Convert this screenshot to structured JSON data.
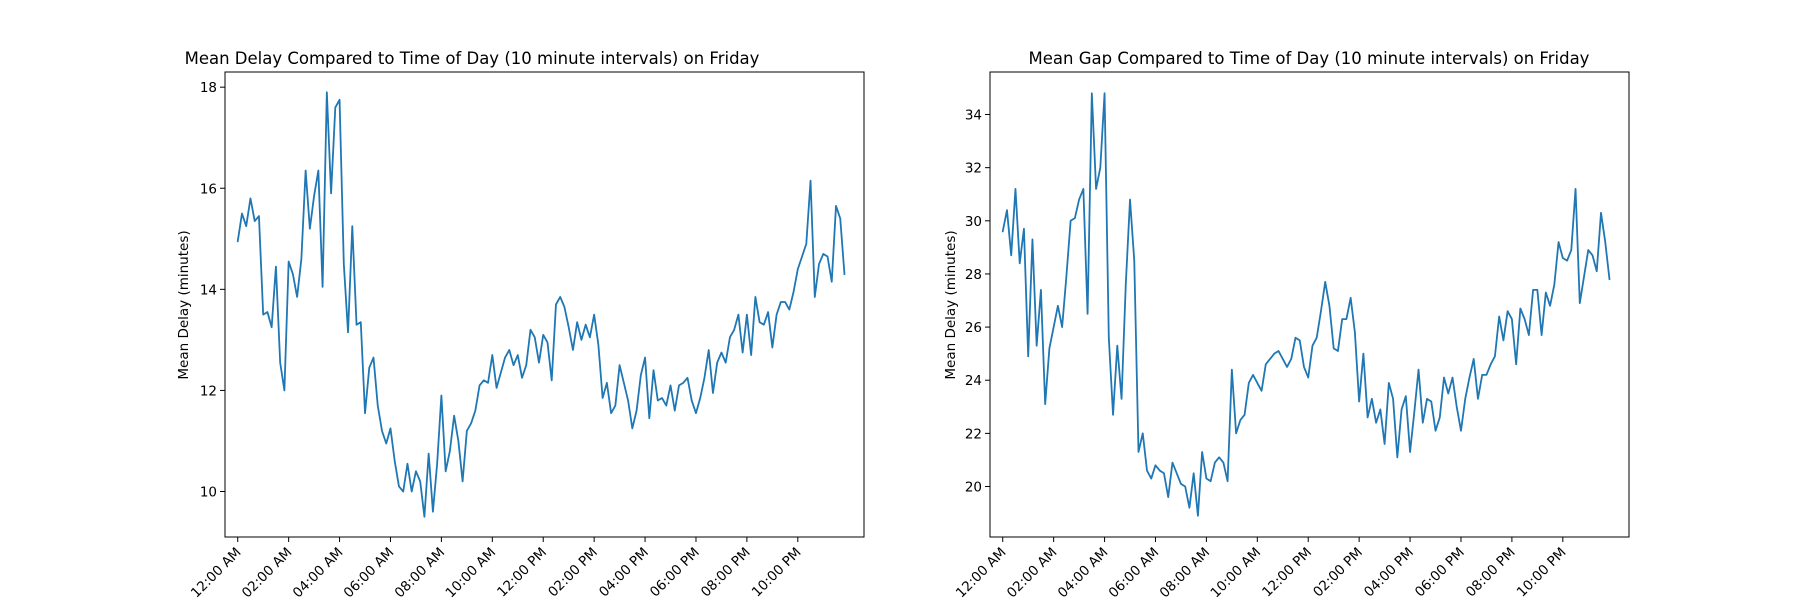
{
  "chart_data": [
    {
      "type": "line",
      "title": "Mean Delay Compared to Time of Day (10 minute intervals) on Friday",
      "xlabel": "",
      "ylabel": "Mean Delay (minutes)",
      "xlim": [
        -0.5,
        24.6
      ],
      "ylim": [
        9.1,
        18.3
      ],
      "x_ticks": [
        0,
        2,
        4,
        6,
        8,
        10,
        12,
        14,
        16,
        18,
        20,
        22
      ],
      "x_tick_labels": [
        "12:00 AM",
        "02:00 AM",
        "04:00 AM",
        "06:00 AM",
        "08:00 AM",
        "10:00 AM",
        "12:00 PM",
        "02:00 PM",
        "04:00 PM",
        "06:00 PM",
        "08:00 PM",
        "10:00 PM"
      ],
      "y_ticks": [
        10,
        12,
        14,
        16,
        18
      ],
      "y_tick_labels": [
        "10",
        "12",
        "14",
        "16",
        "18"
      ],
      "color": "#1f77b4",
      "grid": false,
      "x": [
        0.0,
        0.167,
        0.333,
        0.5,
        0.667,
        0.833,
        1.0,
        1.167,
        1.333,
        1.5,
        1.667,
        1.833,
        2.0,
        2.167,
        2.333,
        2.5,
        2.667,
        2.833,
        3.0,
        3.167,
        3.333,
        3.5,
        3.667,
        3.833,
        4.0,
        4.167,
        4.333,
        4.5,
        4.667,
        4.833,
        5.0,
        5.167,
        5.333,
        5.5,
        5.667,
        5.833,
        6.0,
        6.167,
        6.333,
        6.5,
        6.667,
        6.833,
        7.0,
        7.167,
        7.333,
        7.5,
        7.667,
        7.833,
        8.0,
        8.167,
        8.333,
        8.5,
        8.667,
        8.833,
        9.0,
        9.167,
        9.333,
        9.5,
        9.667,
        9.833,
        10.0,
        10.167,
        10.333,
        10.5,
        10.667,
        10.833,
        11.0,
        11.167,
        11.333,
        11.5,
        11.667,
        11.833,
        12.0,
        12.167,
        12.333,
        12.5,
        12.667,
        12.833,
        13.0,
        13.167,
        13.333,
        13.5,
        13.667,
        13.833,
        14.0,
        14.167,
        14.333,
        14.5,
        14.667,
        14.833,
        15.0,
        15.167,
        15.333,
        15.5,
        15.667,
        15.833,
        16.0,
        16.167,
        16.333,
        16.5,
        16.667,
        16.833,
        17.0,
        17.167,
        17.333,
        17.5,
        17.667,
        17.833,
        18.0,
        18.167,
        18.333,
        18.5,
        18.667,
        18.833,
        19.0,
        19.167,
        19.333,
        19.5,
        19.667,
        19.833,
        20.0,
        20.167,
        20.333,
        20.5,
        20.667,
        20.833,
        21.0,
        21.167,
        21.333,
        21.5,
        21.667,
        21.833,
        22.0,
        22.167,
        22.333,
        22.5,
        22.667,
        22.833,
        23.0,
        23.167,
        23.333,
        23.5,
        23.667,
        23.833
      ],
      "y": [
        14.95,
        15.5,
        15.25,
        15.8,
        15.35,
        15.45,
        13.5,
        13.55,
        13.25,
        14.45,
        12.55,
        12.0,
        14.55,
        14.3,
        13.85,
        14.6,
        16.35,
        15.2,
        15.85,
        16.35,
        14.05,
        17.9,
        15.9,
        17.6,
        17.75,
        14.5,
        13.15,
        15.25,
        13.3,
        13.35,
        11.55,
        12.45,
        12.65,
        11.7,
        11.2,
        10.95,
        11.25,
        10.6,
        10.1,
        10.0,
        10.55,
        10.0,
        10.4,
        10.2,
        9.5,
        10.75,
        9.6,
        10.55,
        11.9,
        10.4,
        10.8,
        11.5,
        11.0,
        10.2,
        11.2,
        11.35,
        11.6,
        12.1,
        12.2,
        12.15,
        12.7,
        12.05,
        12.35,
        12.65,
        12.8,
        12.5,
        12.7,
        12.25,
        12.5,
        13.2,
        13.05,
        12.55,
        13.1,
        12.95,
        12.2,
        13.7,
        13.85,
        13.65,
        13.25,
        12.8,
        13.35,
        13.0,
        13.3,
        13.05,
        13.5,
        12.9,
        11.85,
        12.15,
        11.55,
        11.7,
        12.5,
        12.15,
        11.8,
        11.25,
        11.6,
        12.3,
        12.65,
        11.45,
        12.4,
        11.8,
        11.85,
        11.7,
        12.1,
        11.6,
        12.1,
        12.15,
        12.25,
        11.8,
        11.55,
        11.85,
        12.25,
        12.8,
        11.95,
        12.55,
        12.75,
        12.55,
        13.05,
        13.2,
        13.5,
        12.75,
        13.5,
        12.7,
        13.85,
        13.35,
        13.3,
        13.55,
        12.85,
        13.5,
        13.75,
        13.75,
        13.6,
        13.95,
        14.4,
        14.65,
        14.9,
        16.15,
        13.85,
        14.5,
        14.7,
        14.65,
        14.15,
        15.65,
        15.4,
        14.3
      ]
    },
    {
      "type": "line",
      "title": "Mean Gap Compared to Time of Day (10 minute intervals) on Friday",
      "xlabel": "",
      "ylabel": "Mean Delay (minutes)",
      "xlim": [
        -0.5,
        24.6
      ],
      "ylim": [
        18.1,
        35.6
      ],
      "x_ticks": [
        0,
        2,
        4,
        6,
        8,
        10,
        12,
        14,
        16,
        18,
        20,
        22
      ],
      "x_tick_labels": [
        "12:00 AM",
        "02:00 AM",
        "04:00 AM",
        "06:00 AM",
        "08:00 AM",
        "10:00 AM",
        "12:00 PM",
        "02:00 PM",
        "04:00 PM",
        "06:00 PM",
        "08:00 PM",
        "10:00 PM"
      ],
      "y_ticks": [
        20,
        22,
        24,
        26,
        28,
        30,
        32,
        34
      ],
      "y_tick_labels": [
        "20",
        "22",
        "24",
        "26",
        "28",
        "30",
        "32",
        "34"
      ],
      "color": "#1f77b4",
      "grid": false,
      "x": [
        0.0,
        0.167,
        0.333,
        0.5,
        0.667,
        0.833,
        1.0,
        1.167,
        1.333,
        1.5,
        1.667,
        1.833,
        2.0,
        2.167,
        2.333,
        2.5,
        2.667,
        2.833,
        3.0,
        3.167,
        3.333,
        3.5,
        3.667,
        3.833,
        4.0,
        4.167,
        4.333,
        4.5,
        4.667,
        4.833,
        5.0,
        5.167,
        5.333,
        5.5,
        5.667,
        5.833,
        6.0,
        6.167,
        6.333,
        6.5,
        6.667,
        6.833,
        7.0,
        7.167,
        7.333,
        7.5,
        7.667,
        7.833,
        8.0,
        8.167,
        8.333,
        8.5,
        8.667,
        8.833,
        9.0,
        9.167,
        9.333,
        9.5,
        9.667,
        9.833,
        10.0,
        10.167,
        10.333,
        10.5,
        10.667,
        10.833,
        11.0,
        11.167,
        11.333,
        11.5,
        11.667,
        11.833,
        12.0,
        12.167,
        12.333,
        12.5,
        12.667,
        12.833,
        13.0,
        13.167,
        13.333,
        13.5,
        13.667,
        13.833,
        14.0,
        14.167,
        14.333,
        14.5,
        14.667,
        14.833,
        15.0,
        15.167,
        15.333,
        15.5,
        15.667,
        15.833,
        16.0,
        16.167,
        16.333,
        16.5,
        16.667,
        16.833,
        17.0,
        17.167,
        17.333,
        17.5,
        17.667,
        17.833,
        18.0,
        18.167,
        18.333,
        18.5,
        18.667,
        18.833,
        19.0,
        19.167,
        19.333,
        19.5,
        19.667,
        19.833,
        20.0,
        20.167,
        20.333,
        20.5,
        20.667,
        20.833,
        21.0,
        21.167,
        21.333,
        21.5,
        21.667,
        21.833,
        22.0,
        22.167,
        22.333,
        22.5,
        22.667,
        22.833,
        23.0,
        23.167,
        23.333,
        23.5,
        23.667,
        23.833
      ],
      "y": [
        29.6,
        30.4,
        28.7,
        31.2,
        28.4,
        29.7,
        24.9,
        29.3,
        25.3,
        27.4,
        23.1,
        25.2,
        26.0,
        26.8,
        26.0,
        27.9,
        30.0,
        30.1,
        30.8,
        31.2,
        26.5,
        34.8,
        31.2,
        32.0,
        34.8,
        25.6,
        22.7,
        25.3,
        23.3,
        27.6,
        30.8,
        28.5,
        21.3,
        22.0,
        20.6,
        20.3,
        20.8,
        20.6,
        20.5,
        19.6,
        20.9,
        20.5,
        20.1,
        20.0,
        19.2,
        20.5,
        18.9,
        21.3,
        20.3,
        20.2,
        20.9,
        21.1,
        20.9,
        20.2,
        24.4,
        22.0,
        22.5,
        22.7,
        23.9,
        24.2,
        23.9,
        23.6,
        24.6,
        24.8,
        25.0,
        25.1,
        24.8,
        24.5,
        24.8,
        25.6,
        25.5,
        24.5,
        24.1,
        25.3,
        25.6,
        26.6,
        27.7,
        26.8,
        25.2,
        25.1,
        26.3,
        26.3,
        27.1,
        25.8,
        23.2,
        25.0,
        22.6,
        23.3,
        22.4,
        22.9,
        21.6,
        23.9,
        23.3,
        21.1,
        22.9,
        23.4,
        21.3,
        22.8,
        24.4,
        22.4,
        23.3,
        23.2,
        22.1,
        22.6,
        24.1,
        23.5,
        24.1,
        23.0,
        22.1,
        23.3,
        24.1,
        24.8,
        23.3,
        24.2,
        24.2,
        24.6,
        24.9,
        26.4,
        25.5,
        26.6,
        26.3,
        24.6,
        26.7,
        26.3,
        25.7,
        27.4,
        27.4,
        25.7,
        27.3,
        26.8,
        27.6,
        29.2,
        28.6,
        28.5,
        28.9,
        31.2,
        26.9,
        27.9,
        28.9,
        28.7,
        28.1,
        30.3,
        29.2,
        27.8
      ]
    }
  ]
}
